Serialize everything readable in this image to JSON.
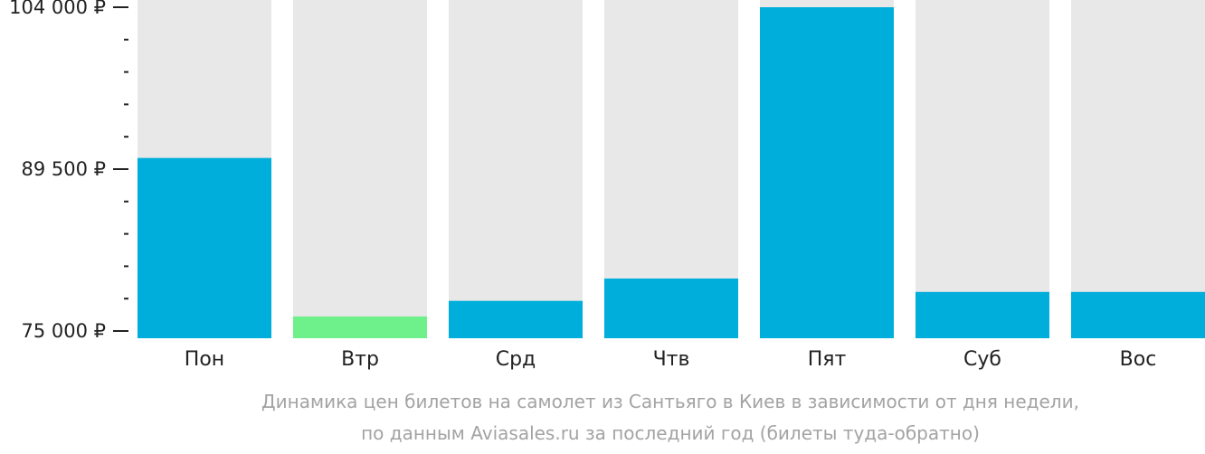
{
  "chart_data": {
    "type": "bar",
    "categories": [
      "Пон",
      "Втр",
      "Срд",
      "Чтв",
      "Пят",
      "Суб",
      "Вос"
    ],
    "values": [
      90500,
      76300,
      77700,
      79700,
      104000,
      78500,
      78500
    ],
    "highlight_index": 1,
    "ylim": [
      75000,
      104000
    ],
    "yticks": [
      {
        "value": 75000,
        "label": "75 000 ₽"
      },
      {
        "value": 89500,
        "label": "89 500 ₽"
      },
      {
        "value": 104000,
        "label": "104 000 ₽"
      }
    ],
    "minor_ticks_between_major": 4,
    "caption_lines": [
      "Динамика цен билетов на самолет из Сантьяго в Киев в зависимости от дня недели,",
      "по данным Aviasales.ru за последний год (билеты туда-обратно)"
    ],
    "colors": {
      "bar": "#00aedb",
      "highlight": "#6ef08a",
      "background_column": "#e8e8e8",
      "axis_text": "#222222",
      "caption": "#a3a3a3"
    }
  }
}
